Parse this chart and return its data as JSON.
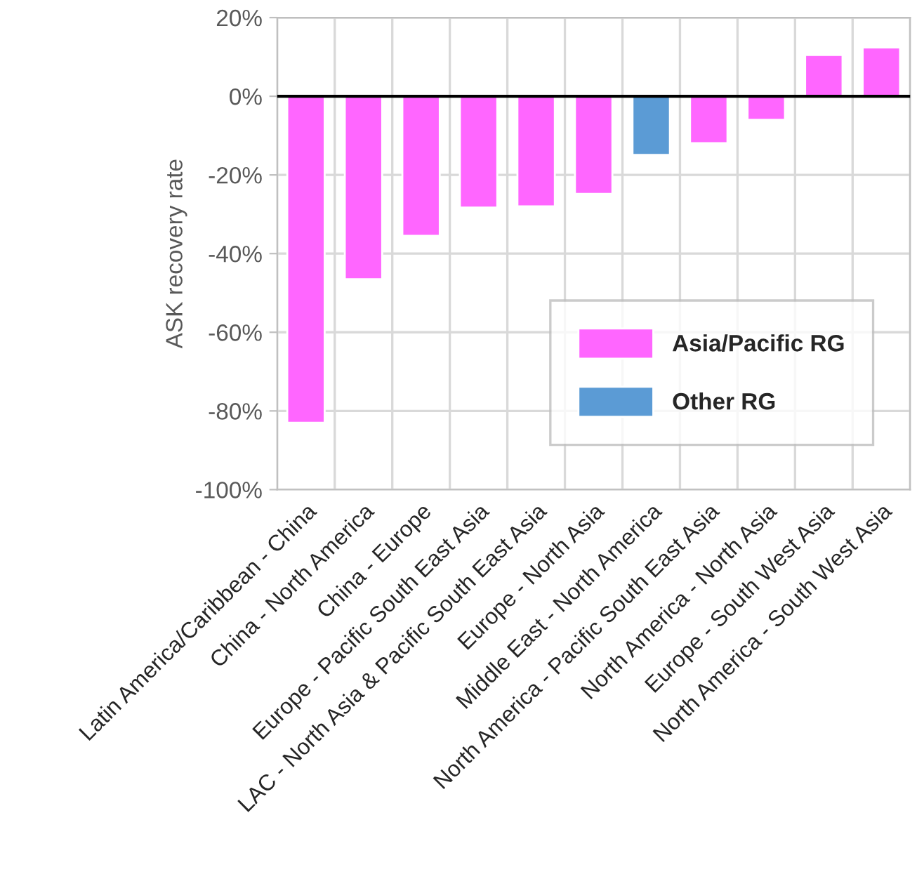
{
  "chart_data": {
    "type": "bar",
    "ylabel": "ASK recovery rate",
    "categories": [
      "Latin America/Caribbean - China",
      "China - North America",
      "China - Europe",
      "Europe - Pacific South East Asia",
      "LAC - North Asia & Pacific South East Asia",
      "Europe - North Asia",
      "Middle East - North America",
      "North America - Pacific South East Asia",
      "North America - North Asia",
      "Europe - South West Asia",
      "North America - South West Asia"
    ],
    "series": [
      {
        "name": "Asia/Pacific RG",
        "color": "#ff66ff",
        "values": [
          -83,
          -46.5,
          -35.5,
          -28.3,
          -28,
          -24.8,
          null,
          -11.9,
          -6,
          10.5,
          12.4
        ]
      },
      {
        "name": "Other RG",
        "color": "#5b9bd5",
        "values": [
          null,
          null,
          null,
          null,
          null,
          null,
          -14.9,
          null,
          null,
          null,
          null
        ]
      }
    ],
    "ylim": [
      -100,
      20
    ],
    "yticks": [
      {
        "value": -100,
        "label": "-100%"
      },
      {
        "value": -80,
        "label": "-80%"
      },
      {
        "value": -60,
        "label": "-60%"
      },
      {
        "value": -40,
        "label": "-40%"
      },
      {
        "value": -20,
        "label": "-20%"
      },
      {
        "value": 0,
        "label": "0%"
      },
      {
        "value": 20,
        "label": "20%"
      }
    ],
    "ref_lines": [
      {
        "axis": "y",
        "value": 0,
        "color": "#000000"
      }
    ],
    "grid": true,
    "legend": "bottom right"
  }
}
